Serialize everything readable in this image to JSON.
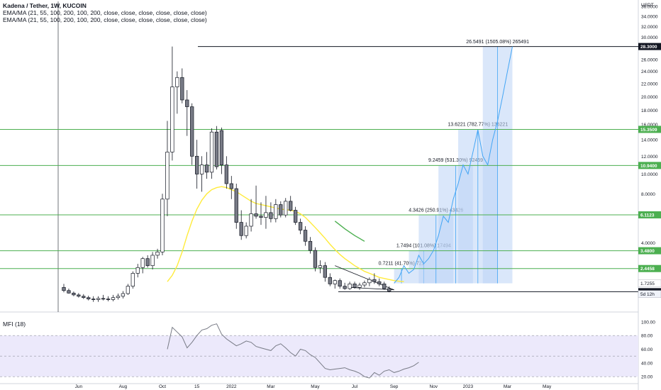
{
  "header": {
    "title": "Kadena / Tether, 1W, KUCOIN",
    "indicator_1": "EMA/MA (21, 55, 100, 200, 100, 200, close, close, close, close, close, close)",
    "indicator_2": "EMA/MA (21, 55, 100, 200, 100, 200, close, close, close, close, close, close)",
    "unit": "USDT"
  },
  "colors": {
    "up": "#ffffff",
    "down": "#787b86",
    "candle_border": "#131722",
    "ema_yellow": "#ffeb3b",
    "ema_green": "#4caf50",
    "hline": "#4caf50",
    "projection_fill": "#bbd3f5",
    "projection_line": "#42a5f5",
    "mfi_band": "#ece9fb",
    "mfi_line": "#787b86"
  },
  "chart_data": {
    "type": "candlestick",
    "price_scale": {
      "ticks": [
        "36.0000",
        "34.0000",
        "32.0000",
        "30.0000",
        "28.0000",
        "26.0000",
        "24.0000",
        "22.0000",
        "20.0000",
        "18.0000",
        "16.0000",
        "14.0000",
        "12.0000",
        "10.0000",
        "8.0000",
        "6.0000",
        "4.0000"
      ],
      "tick_values": [
        36,
        34,
        32,
        30,
        28,
        26,
        24,
        22,
        20,
        18,
        16,
        14,
        12,
        10,
        8,
        6,
        4
      ],
      "ylim": [
        0.9,
        37
      ]
    },
    "time_axis": {
      "labels": [
        "Jun",
        "Aug",
        "Oct",
        "15",
        "2022",
        "Mar",
        "May",
        "Jul",
        "Sep",
        "Nov",
        "2023",
        "Mar",
        "May"
      ],
      "label_index": [
        3,
        12,
        20,
        27,
        34,
        42,
        51,
        59,
        67,
        75,
        82,
        90,
        98
      ]
    },
    "candles": [
      {
        "o": 1.55,
        "h": 1.7,
        "l": 1.35,
        "c": 1.42
      },
      {
        "o": 1.42,
        "h": 1.5,
        "l": 1.3,
        "c": 1.32
      },
      {
        "o": 1.32,
        "h": 1.38,
        "l": 1.2,
        "c": 1.25
      },
      {
        "o": 1.25,
        "h": 1.32,
        "l": 1.15,
        "c": 1.2
      },
      {
        "o": 1.2,
        "h": 1.28,
        "l": 1.1,
        "c": 1.15
      },
      {
        "o": 1.15,
        "h": 1.22,
        "l": 1.05,
        "c": 1.1
      },
      {
        "o": 1.1,
        "h": 1.2,
        "l": 1.0,
        "c": 1.08
      },
      {
        "o": 1.08,
        "h": 1.2,
        "l": 1.0,
        "c": 1.12
      },
      {
        "o": 1.12,
        "h": 1.25,
        "l": 1.05,
        "c": 1.1
      },
      {
        "o": 1.1,
        "h": 1.2,
        "l": 1.02,
        "c": 1.08
      },
      {
        "o": 1.08,
        "h": 1.25,
        "l": 1.02,
        "c": 1.15
      },
      {
        "o": 1.15,
        "h": 1.3,
        "l": 1.08,
        "c": 1.2
      },
      {
        "o": 1.2,
        "h": 1.4,
        "l": 1.12,
        "c": 1.3
      },
      {
        "o": 1.3,
        "h": 1.7,
        "l": 1.25,
        "c": 1.6
      },
      {
        "o": 1.6,
        "h": 2.3,
        "l": 1.5,
        "c": 2.2
      },
      {
        "o": 2.2,
        "h": 2.7,
        "l": 2.0,
        "c": 2.5
      },
      {
        "o": 2.5,
        "h": 3.1,
        "l": 2.2,
        "c": 3.0
      },
      {
        "o": 3.0,
        "h": 3.2,
        "l": 2.5,
        "c": 2.6
      },
      {
        "o": 2.6,
        "h": 3.4,
        "l": 2.4,
        "c": 3.2
      },
      {
        "o": 3.2,
        "h": 3.6,
        "l": 3.0,
        "c": 3.4
      },
      {
        "o": 3.4,
        "h": 8.0,
        "l": 3.2,
        "c": 7.5
      },
      {
        "o": 7.5,
        "h": 16.5,
        "l": 6.0,
        "c": 12.5
      },
      {
        "o": 12.5,
        "h": 28.3,
        "l": 11.5,
        "c": 21.5
      },
      {
        "o": 21.5,
        "h": 24.0,
        "l": 17.5,
        "c": 23.0
      },
      {
        "o": 23.0,
        "h": 24.5,
        "l": 19.0,
        "c": 19.5
      },
      {
        "o": 19.5,
        "h": 21.0,
        "l": 14.5,
        "c": 18.5
      },
      {
        "o": 18.5,
        "h": 19.0,
        "l": 11.0,
        "c": 12.0
      },
      {
        "o": 12.0,
        "h": 14.0,
        "l": 8.5,
        "c": 10.0
      },
      {
        "o": 10.0,
        "h": 12.0,
        "l": 8.2,
        "c": 11.0
      },
      {
        "o": 11.0,
        "h": 12.5,
        "l": 9.5,
        "c": 10.2
      },
      {
        "o": 10.2,
        "h": 15.5,
        "l": 9.5,
        "c": 15.0
      },
      {
        "o": 15.0,
        "h": 15.8,
        "l": 10.5,
        "c": 10.8
      },
      {
        "o": 15.2,
        "h": 15.6,
        "l": 10.0,
        "c": 11.0
      },
      {
        "o": 11.0,
        "h": 12.0,
        "l": 8.5,
        "c": 9.0
      },
      {
        "o": 9.0,
        "h": 9.8,
        "l": 7.5,
        "c": 8.5
      },
      {
        "o": 8.5,
        "h": 9.0,
        "l": 5.0,
        "c": 5.5
      },
      {
        "o": 5.5,
        "h": 6.5,
        "l": 4.2,
        "c": 4.5
      },
      {
        "o": 4.5,
        "h": 5.5,
        "l": 4.3,
        "c": 5.2
      },
      {
        "o": 5.2,
        "h": 7.5,
        "l": 4.8,
        "c": 6.2
      },
      {
        "o": 6.2,
        "h": 8.8,
        "l": 5.8,
        "c": 6.0
      },
      {
        "o": 6.0,
        "h": 7.2,
        "l": 5.3,
        "c": 5.9
      },
      {
        "o": 5.9,
        "h": 7.8,
        "l": 5.0,
        "c": 6.3
      },
      {
        "o": 6.3,
        "h": 7.2,
        "l": 5.5,
        "c": 5.8
      },
      {
        "o": 5.8,
        "h": 7.5,
        "l": 5.5,
        "c": 7.0
      },
      {
        "o": 7.0,
        "h": 7.3,
        "l": 5.9,
        "c": 6.1
      },
      {
        "o": 6.1,
        "h": 7.6,
        "l": 5.9,
        "c": 7.3
      },
      {
        "o": 7.3,
        "h": 7.8,
        "l": 6.4,
        "c": 6.5
      },
      {
        "o": 6.5,
        "h": 6.8,
        "l": 5.3,
        "c": 5.5
      },
      {
        "o": 5.5,
        "h": 5.8,
        "l": 4.6,
        "c": 4.9
      },
      {
        "o": 4.9,
        "h": 5.2,
        "l": 3.8,
        "c": 4.1
      },
      {
        "o": 4.1,
        "h": 4.4,
        "l": 3.3,
        "c": 3.5
      },
      {
        "o": 3.5,
        "h": 3.7,
        "l": 2.3,
        "c": 2.5
      },
      {
        "o": 2.5,
        "h": 2.9,
        "l": 2.2,
        "c": 2.6
      },
      {
        "o": 2.6,
        "h": 2.8,
        "l": 1.8,
        "c": 2.0
      },
      {
        "o": 2.0,
        "h": 2.2,
        "l": 1.6,
        "c": 1.7
      },
      {
        "o": 1.7,
        "h": 1.9,
        "l": 1.5,
        "c": 1.85
      },
      {
        "o": 1.85,
        "h": 1.95,
        "l": 1.5,
        "c": 1.6
      },
      {
        "o": 1.6,
        "h": 1.75,
        "l": 1.45,
        "c": 1.5
      },
      {
        "o": 1.5,
        "h": 1.8,
        "l": 1.45,
        "c": 1.7
      },
      {
        "o": 1.7,
        "h": 1.8,
        "l": 1.5,
        "c": 1.55
      },
      {
        "o": 1.55,
        "h": 1.75,
        "l": 1.45,
        "c": 1.65
      },
      {
        "o": 1.65,
        "h": 1.85,
        "l": 1.55,
        "c": 1.75
      },
      {
        "o": 1.75,
        "h": 2.0,
        "l": 1.6,
        "c": 1.9
      },
      {
        "o": 1.9,
        "h": 2.2,
        "l": 1.7,
        "c": 1.8
      },
      {
        "o": 1.8,
        "h": 1.95,
        "l": 1.6,
        "c": 1.7
      },
      {
        "o": 1.7,
        "h": 1.8,
        "l": 1.45,
        "c": 1.5
      },
      {
        "o": 1.5,
        "h": 1.6,
        "l": 1.35,
        "c": 1.4
      }
    ],
    "ema_yellow": {
      "start": 21,
      "values": [
        1.8,
        2.1,
        2.6,
        3.4,
        4.5,
        5.6,
        6.6,
        7.4,
        8.0,
        8.4,
        8.6,
        8.7,
        8.6,
        8.4,
        8.2,
        7.9,
        7.6,
        7.3,
        7.1,
        7.0,
        6.9,
        6.8,
        6.7,
        6.6,
        6.55,
        6.5,
        6.4,
        6.2,
        5.9,
        5.5,
        5.1,
        4.7,
        4.3,
        3.9,
        3.55,
        3.25,
        3.0,
        2.8,
        2.6,
        2.45,
        2.3,
        2.2,
        2.1,
        2.0,
        1.95,
        1.9,
        1.85,
        1.82,
        1.8
      ]
    },
    "ema_green": {
      "start": 55,
      "values": [
        5.6,
        5.3,
        5.0,
        4.75,
        4.5,
        4.3,
        4.1
      ]
    },
    "hlines": [
      {
        "label": "28.3000",
        "value": 28.3
      },
      {
        "label": "15.3509",
        "value": 15.3509
      },
      {
        "label": "10.9400",
        "value": 10.94
      },
      {
        "label": "6.1123",
        "value": 6.1123
      },
      {
        "label": "3.4800",
        "value": 3.48
      },
      {
        "label": "2.4458",
        "value": 2.4458
      },
      {
        "label": "1.3750",
        "value": 1.375
      }
    ],
    "price_tags": [
      {
        "label": "1.7255",
        "value": 1.7255
      },
      {
        "label": "5d 12h",
        "value": 1.45
      }
    ],
    "projections": [
      {
        "label": "0.7211 (41.70%) 721",
        "from": 1.7255,
        "to": 2.4466,
        "x0": 67,
        "x1": 70
      },
      {
        "label": "1.7494 (101.08%) 17494",
        "from": 1.7255,
        "to": 3.4749,
        "x0": 70,
        "x1": 76
      },
      {
        "label": "4.3426 (250.91%) 43426",
        "from": 1.7255,
        "to": 6.0681,
        "x0": 72,
        "x1": 79
      },
      {
        "label": "9.2459 (531.30%) 92459",
        "from": 1.7255,
        "to": 10.9714,
        "x0": 76,
        "x1": 83
      },
      {
        "label": "13.6221 (782.77%) 136221",
        "from": 1.7255,
        "to": 15.3476,
        "x0": 80,
        "x1": 88
      },
      {
        "label": "26.5491 (1505.08%) 265491",
        "from": 1.7255,
        "to": 28.2746,
        "x0": 85,
        "x1": 91
      }
    ],
    "projected_path": [
      [
        67,
        1.73
      ],
      [
        68,
        2.0
      ],
      [
        69,
        2.6
      ],
      [
        70,
        2.2
      ],
      [
        71,
        2.4
      ],
      [
        72,
        3.2
      ],
      [
        73,
        2.7
      ],
      [
        74,
        3.0
      ],
      [
        75,
        3.5
      ],
      [
        76,
        4.5
      ],
      [
        77,
        6.0
      ],
      [
        78,
        5.5
      ],
      [
        79,
        7.5
      ],
      [
        80,
        9.0
      ],
      [
        81,
        11.0
      ],
      [
        82,
        10.0
      ],
      [
        83,
        12.5
      ],
      [
        84,
        15.3
      ],
      [
        85,
        12.0
      ],
      [
        86,
        11.0
      ],
      [
        87,
        14.0
      ],
      [
        88,
        16.5
      ],
      [
        89,
        20.0
      ],
      [
        90,
        24.0
      ],
      [
        91,
        28.3
      ]
    ],
    "mfi": {
      "label": "MFI (18)",
      "ticks": [
        "100.00",
        "80.00",
        "60.00",
        "40.00",
        "20.00"
      ],
      "tick_values": [
        100,
        80,
        60,
        40,
        20
      ],
      "band": [
        20,
        80
      ],
      "midline": 50,
      "start": 21,
      "values": [
        60,
        92,
        85,
        78,
        62,
        70,
        80,
        88,
        90,
        95,
        97,
        82,
        75,
        70,
        65,
        68,
        72,
        70,
        64,
        62,
        60,
        58,
        65,
        68,
        62,
        55,
        50,
        60,
        58,
        52,
        48,
        40,
        32,
        30,
        31,
        32,
        33,
        30,
        28,
        25,
        20,
        18,
        26,
        22,
        28,
        30,
        26,
        28,
        31,
        33,
        36,
        41
      ]
    }
  }
}
